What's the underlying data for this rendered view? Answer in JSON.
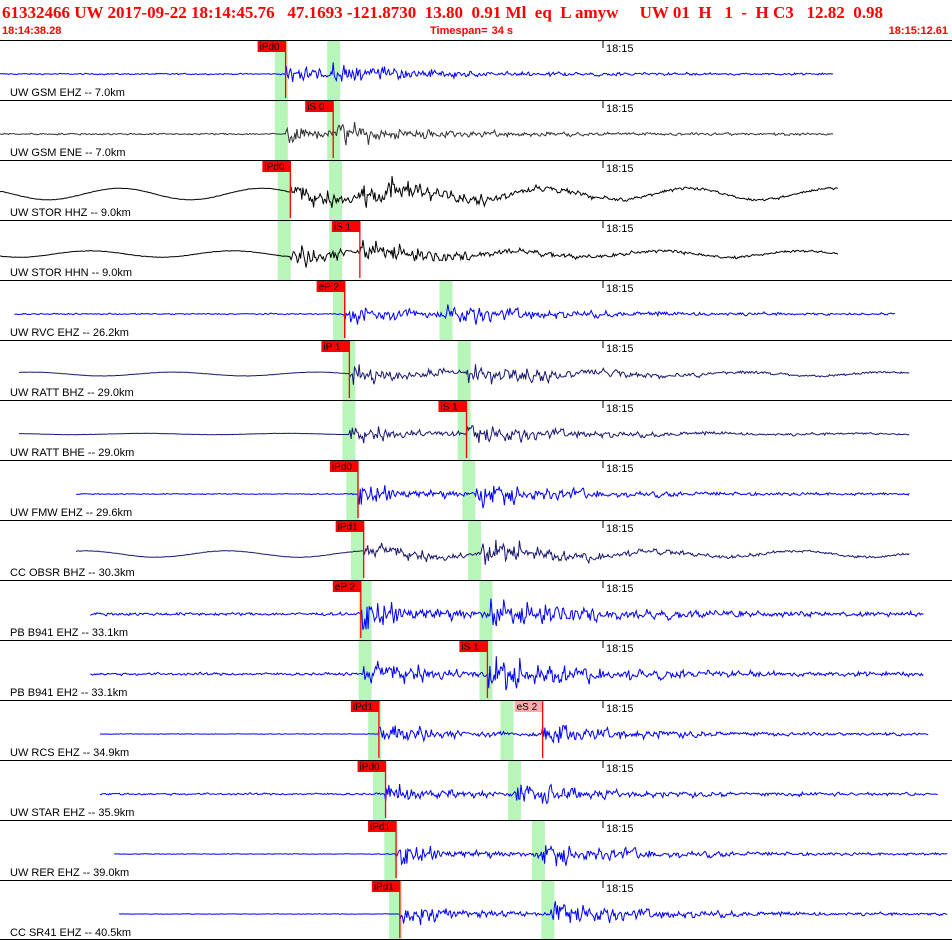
{
  "header": {
    "title": "61332466 UW 2017-09-22 18:14:45.76   47.1693 -121.8730  13.80  0.91 Ml  eq  L amyw     UW 01  H   1  -  H C3   12.82  0.98",
    "start_time": "18:14:38.28",
    "timespan_label": "Timespan=",
    "timespan_value": "34 s",
    "end_time": "18:15:12.61"
  },
  "minute_label": "18:15",
  "colors": {
    "blue": "#0000ff",
    "black": "#000000",
    "dark": "#191970",
    "gray": "#333333",
    "pick": "#ff0000",
    "pick_light": "#ffaaaa",
    "window": "#b8f5b8"
  },
  "channels": [
    {
      "label": "UW GSM EHZ -- 7.0km",
      "color": "blue",
      "start": 0.0,
      "end": 0.875,
      "amp": 0.25,
      "noise": 0.2,
      "p": 0.3,
      "s": 0.35,
      "lp": 0.0,
      "windows": [
        0.295,
        0.35
      ],
      "picks": [
        {
          "label": "iPd0",
          "t": 0.3,
          "style": "solid"
        }
      ]
    },
    {
      "label": "UW GSM ENE -- 7.0km",
      "color": "gray",
      "start": 0.0,
      "end": 0.875,
      "amp": 0.25,
      "noise": 0.25,
      "p": 0.3,
      "s": 0.35,
      "lp": 0.0,
      "windows": [
        0.295,
        0.35
      ],
      "picks": [
        {
          "label": "iS 0",
          "t": 0.35,
          "style": "solid"
        }
      ]
    },
    {
      "label": "UW STOR HHZ -- 9.0km",
      "color": "black",
      "start": 0.0,
      "end": 0.88,
      "amp": 0.35,
      "noise": 0.08,
      "p": 0.305,
      "s": 0.38,
      "lp": 0.45,
      "windows": [
        0.298,
        0.352
      ],
      "picks": [
        {
          "label": "iPd0",
          "t": 0.305,
          "style": "solid"
        }
      ]
    },
    {
      "label": "UW STOR HHN -- 9.0km",
      "color": "black",
      "start": 0.0,
      "end": 0.88,
      "amp": 0.3,
      "noise": 0.08,
      "p": 0.305,
      "s": 0.378,
      "lp": 0.25,
      "windows": [
        0.298,
        0.352
      ],
      "picks": [
        {
          "label": "iS 1",
          "t": 0.378,
          "style": "solid"
        }
      ]
    },
    {
      "label": "UW RVC EHZ -- 26.2km",
      "color": "blue",
      "start": 0.015,
      "end": 0.94,
      "amp": 0.28,
      "noise": 0.2,
      "p": 0.362,
      "s": 0.468,
      "lp": 0.0,
      "windows": [
        0.356,
        0.468
      ],
      "picks": [
        {
          "label": "eP 2",
          "t": 0.362,
          "style": "solid"
        }
      ]
    },
    {
      "label": "UW RATT BHZ -- 29.0km",
      "color": "dark",
      "start": 0.02,
      "end": 0.955,
      "amp": 0.3,
      "noise": 0.05,
      "p": 0.367,
      "s": 0.49,
      "lp": 0.15,
      "windows": [
        0.366,
        0.487
      ],
      "picks": [
        {
          "label": "iP 1",
          "t": 0.367,
          "style": "solid"
        }
      ]
    },
    {
      "label": "UW RATT BHE -- 29.0km",
      "color": "dark",
      "start": 0.02,
      "end": 0.955,
      "amp": 0.28,
      "noise": 0.04,
      "p": 0.367,
      "s": 0.49,
      "lp": 0.05,
      "windows": [
        0.366,
        0.487
      ],
      "picks": [
        {
          "label": "iS 1",
          "t": 0.49,
          "style": "solid"
        }
      ]
    },
    {
      "label": "UW FMW EHZ -- 29.6km",
      "color": "blue",
      "start": 0.08,
      "end": 0.955,
      "amp": 0.3,
      "noise": 0.15,
      "p": 0.376,
      "s": 0.5,
      "lp": 0.0,
      "windows": [
        0.37,
        0.492
      ],
      "picks": [
        {
          "label": "iPd0",
          "t": 0.376,
          "style": "solid"
        }
      ]
    },
    {
      "label": "CC OBSR BHZ -- 30.3km",
      "color": "dark",
      "start": 0.08,
      "end": 0.955,
      "amp": 0.3,
      "noise": 0.08,
      "p": 0.382,
      "s": 0.505,
      "lp": 0.25,
      "windows": [
        0.375,
        0.498
      ],
      "picks": [
        {
          "label": "iPd1",
          "t": 0.382,
          "style": "solid"
        }
      ]
    },
    {
      "label": "PB B941 EHZ -- 33.1km",
      "color": "blue",
      "start": 0.095,
      "end": 0.97,
      "amp": 0.45,
      "noise": 0.45,
      "p": 0.379,
      "s": 0.515,
      "lp": 0.0,
      "windows": [
        0.383,
        0.51
      ],
      "picks": [
        {
          "label": "eP 2",
          "t": 0.379,
          "style": "solid"
        }
      ]
    },
    {
      "label": "PB B941 EH2 -- 33.1km",
      "color": "blue",
      "start": 0.095,
      "end": 0.97,
      "amp": 0.45,
      "noise": 0.4,
      "p": 0.38,
      "s": 0.512,
      "lp": 0.0,
      "windows": [
        0.383,
        0.51
      ],
      "picks": [
        {
          "label": "iS 1",
          "t": 0.512,
          "style": "solid"
        }
      ]
    },
    {
      "label": "UW RCS EHZ -- 34.9km",
      "color": "blue",
      "start": 0.105,
      "end": 0.975,
      "amp": 0.3,
      "noise": 0.08,
      "p": 0.398,
      "s": 0.57,
      "lp": 0.0,
      "windows": [
        0.393,
        0.532
      ],
      "picks": [
        {
          "label": "iPd1",
          "t": 0.398,
          "style": "solid"
        },
        {
          "label": "eS 2",
          "t": 0.57,
          "style": "light"
        }
      ]
    },
    {
      "label": "UW STAR EHZ -- 35.9km",
      "color": "blue",
      "start": 0.105,
      "end": 0.985,
      "amp": 0.28,
      "noise": 0.3,
      "p": 0.405,
      "s": 0.54,
      "lp": 0.0,
      "windows": [
        0.398,
        0.54
      ],
      "picks": [
        {
          "label": "iPd0",
          "t": 0.405,
          "style": "solid"
        }
      ]
    },
    {
      "label": "UW RER EHZ -- 39.0km",
      "color": "blue",
      "start": 0.12,
      "end": 0.995,
      "amp": 0.3,
      "noise": 0.1,
      "p": 0.416,
      "s": 0.565,
      "lp": 0.0,
      "windows": [
        0.41,
        0.565
      ],
      "picks": [
        {
          "label": "iPd1",
          "t": 0.416,
          "style": "solid"
        }
      ]
    },
    {
      "label": "CC SR41 EHZ -- 40.5km",
      "color": "blue",
      "start": 0.125,
      "end": 0.995,
      "amp": 0.32,
      "noise": 0.08,
      "p": 0.42,
      "s": 0.578,
      "lp": 0.0,
      "windows": [
        0.415,
        0.575
      ],
      "picks": [
        {
          "label": "iPd1",
          "t": 0.42,
          "style": "solid"
        }
      ]
    }
  ]
}
